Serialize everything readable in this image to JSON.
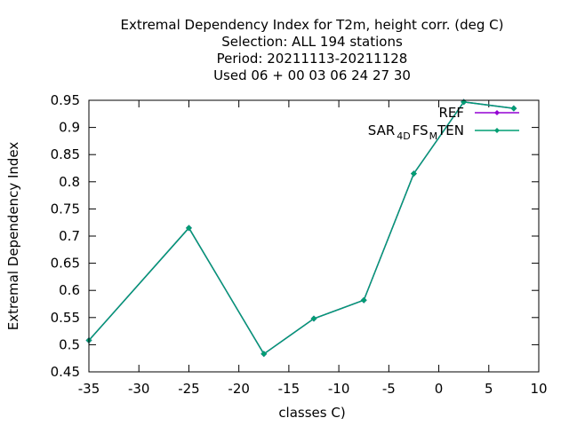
{
  "chart_data": {
    "type": "line",
    "title_lines": [
      "Extremal Dependency Index  for T2m, height corr. (deg C)",
      "Selection: ALL    194 stations",
      "Period: 20211113-20211128",
      "Used  06 + 00 03 06 24 27 30"
    ],
    "xlabel": "classes C)",
    "ylabel": "Extremal Dependency Index",
    "xlim": [
      -35,
      10
    ],
    "ylim": [
      0.45,
      0.95
    ],
    "x_ticks": [
      "-35",
      "-30",
      "-25",
      "-20",
      "-15",
      "-10",
      "-5",
      "0",
      "5",
      "10"
    ],
    "y_ticks": [
      "0.45",
      "0.5",
      "0.55",
      "0.6",
      "0.65",
      "0.7",
      "0.75",
      "0.8",
      "0.85",
      "0.9",
      "0.95"
    ],
    "legend_position": "top-right",
    "series": [
      {
        "name": "REF",
        "color": "#9400d3",
        "x": [
          -35,
          -25,
          -17.5,
          -12.5,
          -7.5,
          -2.5,
          2.5,
          7.5
        ],
        "y": [
          0.508,
          0.715,
          0.483,
          0.548,
          0.582,
          0.815,
          0.947,
          0.935
        ]
      },
      {
        "name_parts": [
          "SAR",
          "4D",
          "FS",
          "M",
          "TEN"
        ],
        "color": "#009e73",
        "x": [
          -35,
          -25,
          -17.5,
          -12.5,
          -7.5,
          -2.5,
          2.5,
          7.5
        ],
        "y": [
          0.508,
          0.715,
          0.483,
          0.548,
          0.582,
          0.815,
          0.947,
          0.935
        ]
      }
    ]
  }
}
